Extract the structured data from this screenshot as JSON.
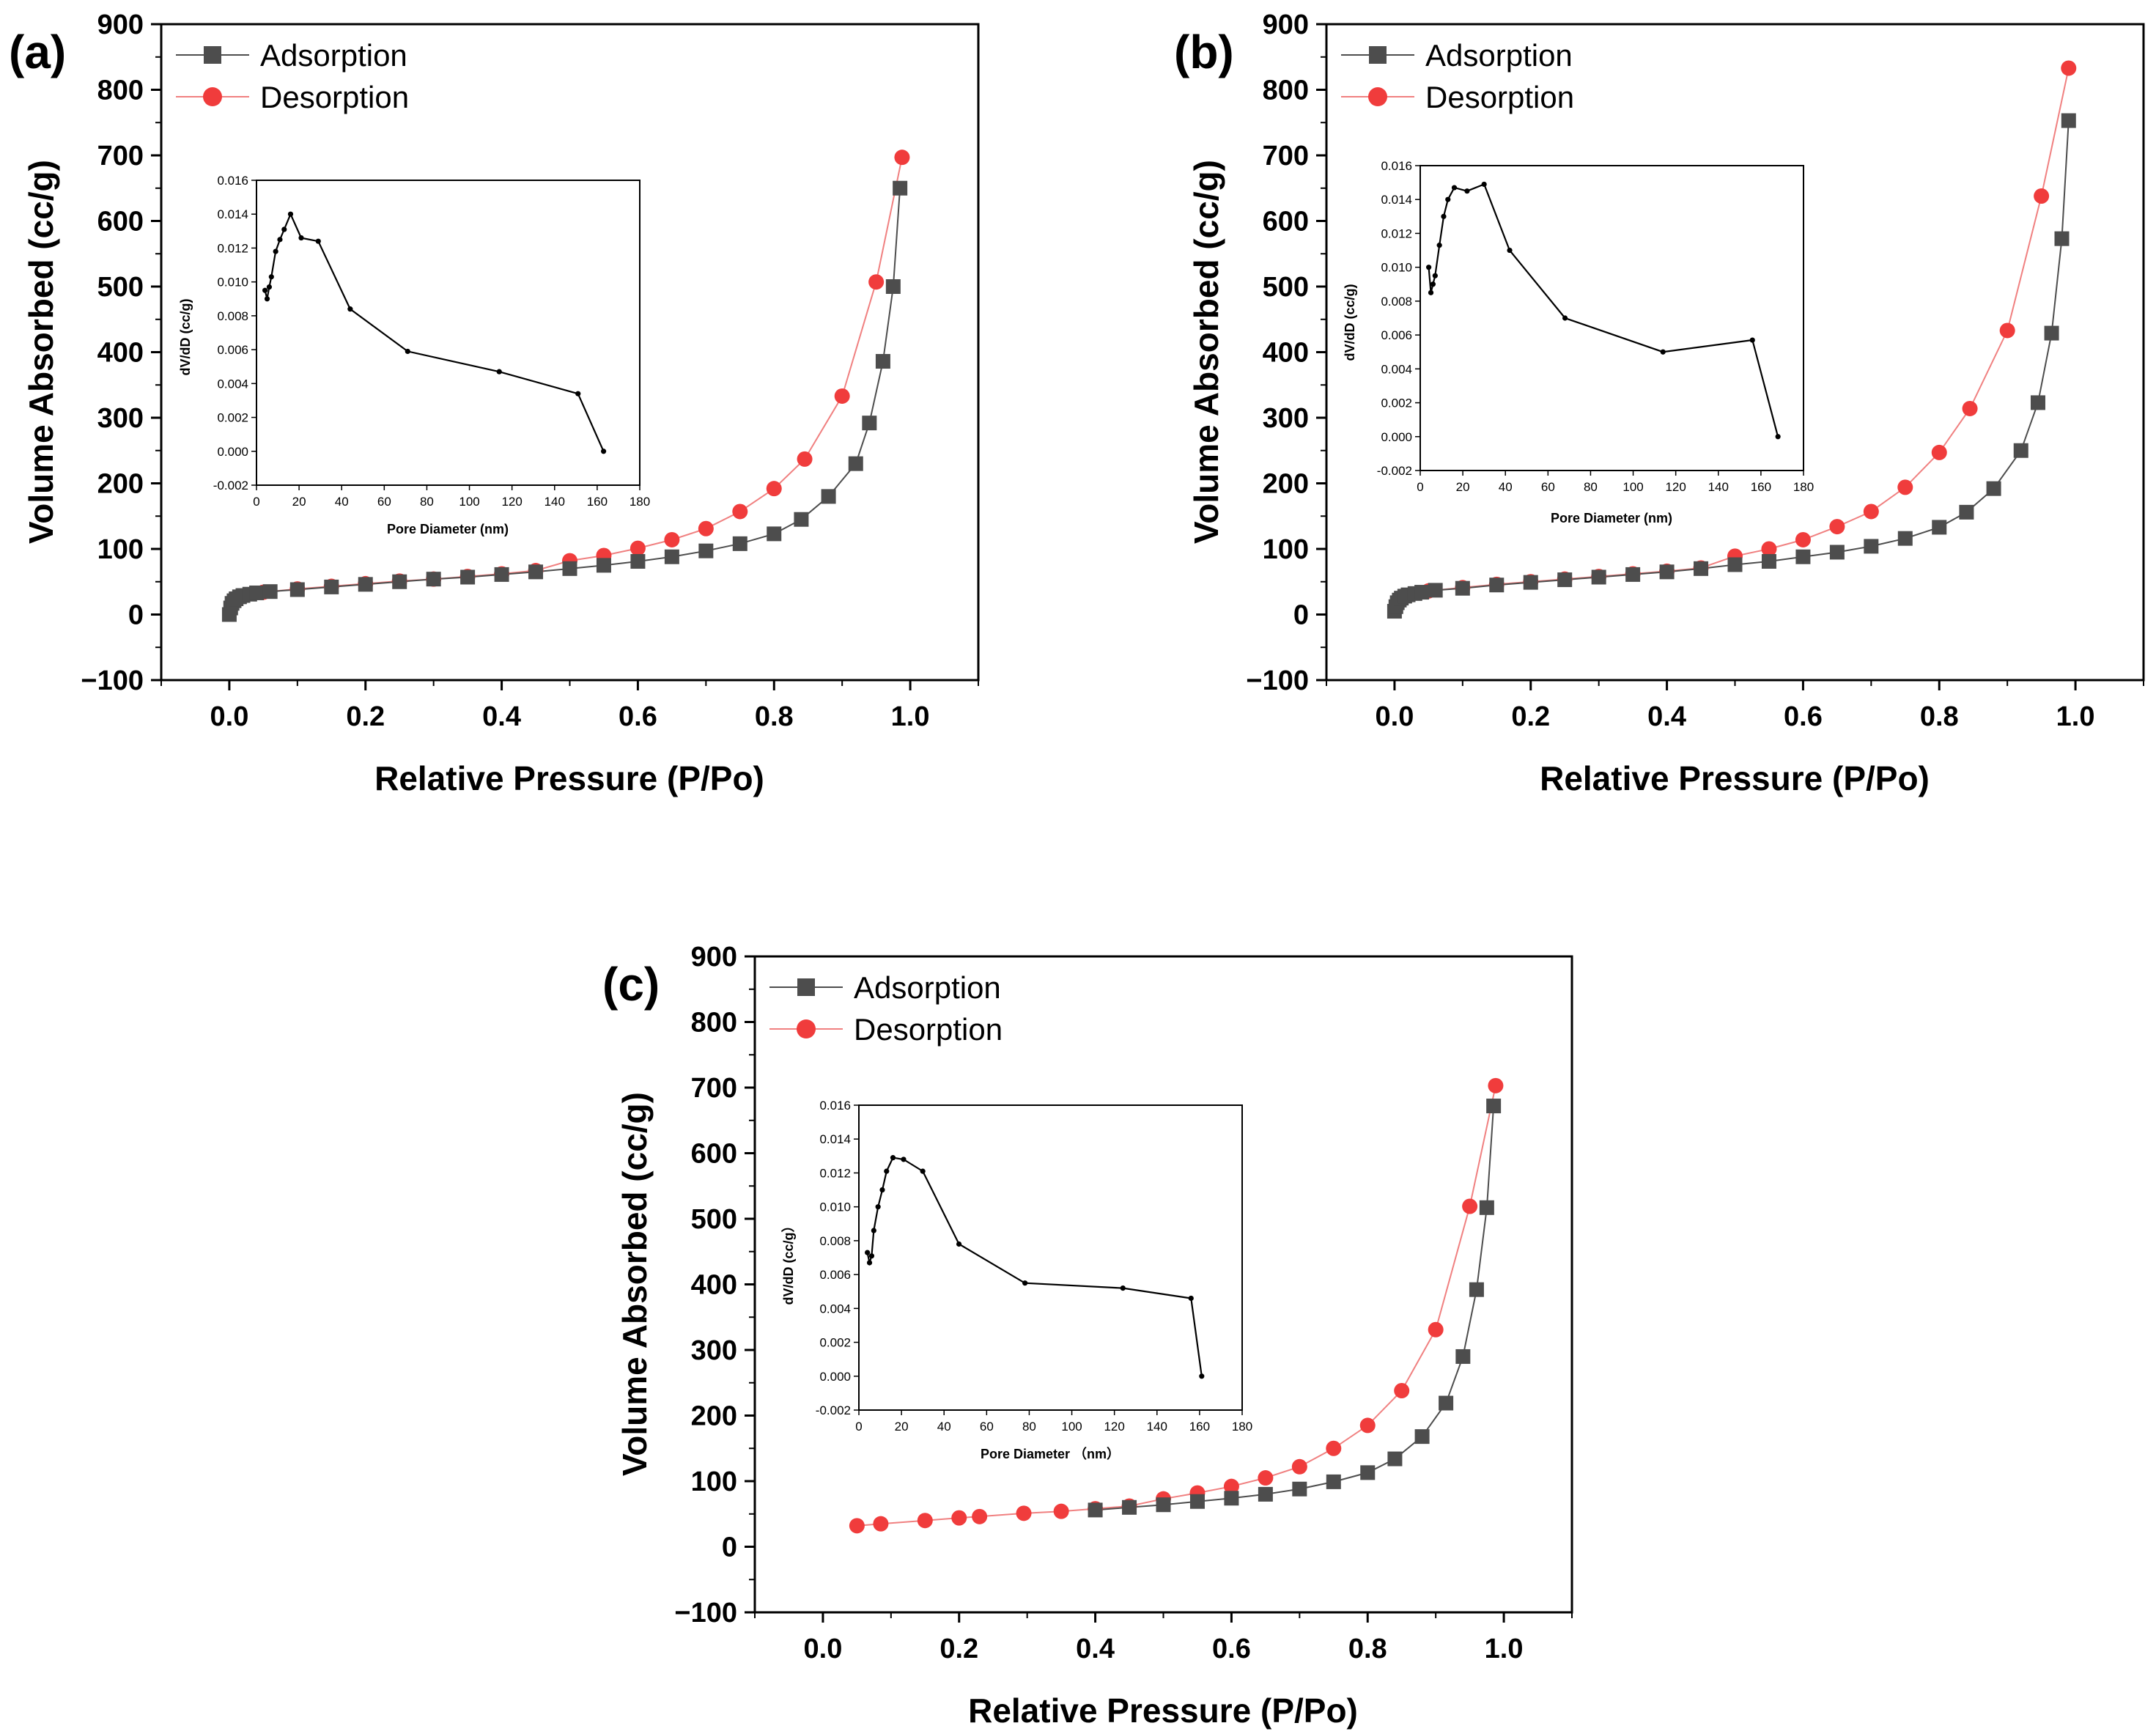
{
  "figure": {
    "colors": {
      "adsorption": "#4d4d4d",
      "desorption": "#f03c3c",
      "desorption_line": "#f08080",
      "inset_line": "#000000"
    },
    "icons": {
      "adsorption_marker": "square-marker-icon",
      "desorption_marker": "circle-marker-icon"
    }
  },
  "chart_data": [
    {
      "panel": "(a)",
      "type": "line",
      "xlabel": "Relative Pressure (P/Po)",
      "ylabel": "Volume Absorbed (cc/g)",
      "xlim": [
        -0.1,
        1.1
      ],
      "ylim": [
        -100,
        900
      ],
      "xticks": [
        "0.0",
        "0.2",
        "0.4",
        "0.6",
        "0.8",
        "1.0"
      ],
      "yticks": [
        "−100",
        "0",
        "100",
        "200",
        "300",
        "400",
        "500",
        "600",
        "700",
        "800",
        "900"
      ],
      "legend": [
        "Adsorption",
        "Desorption"
      ],
      "legend_position": "top-left",
      "series": [
        {
          "name": "Adsorption",
          "marker": "square",
          "x": [
            0.0,
            0.002,
            0.004,
            0.007,
            0.01,
            0.015,
            0.02,
            0.03,
            0.04,
            0.06,
            0.1,
            0.15,
            0.2,
            0.25,
            0.3,
            0.35,
            0.4,
            0.45,
            0.5,
            0.55,
            0.6,
            0.65,
            0.7,
            0.75,
            0.8,
            0.84,
            0.88,
            0.92,
            0.94,
            0.96,
            0.975,
            0.985
          ],
          "y": [
            0,
            10,
            17,
            21,
            24,
            27,
            29,
            31,
            33,
            35,
            38,
            42,
            46,
            50,
            54,
            57,
            61,
            65,
            70,
            75,
            81,
            88,
            97,
            108,
            123,
            145,
            180,
            230,
            292,
            386,
            500,
            650
          ]
        },
        {
          "name": "Desorption",
          "marker": "circle",
          "x": [
            0.05,
            0.1,
            0.15,
            0.2,
            0.25,
            0.3,
            0.35,
            0.4,
            0.45,
            0.5,
            0.55,
            0.6,
            0.65,
            0.7,
            0.75,
            0.8,
            0.845,
            0.9,
            0.95,
            0.988
          ],
          "y": [
            34,
            39,
            43,
            47,
            51,
            54,
            58,
            62,
            67,
            82,
            90,
            101,
            114,
            131,
            157,
            192,
            237,
            333,
            507,
            697
          ]
        }
      ],
      "inset": {
        "type": "line",
        "xlabel": "Pore Diameter (nm)",
        "ylabel": "dV/dD (cc/g)",
        "xlim": [
          0,
          180
        ],
        "ylim": [
          -0.002,
          0.016
        ],
        "xticks": [
          "0",
          "20",
          "40",
          "60",
          "80",
          "100",
          "120",
          "140",
          "160",
          "180"
        ],
        "yticks": [
          "-0.002",
          "0.000",
          "0.002",
          "0.004",
          "0.006",
          "0.008",
          "0.010",
          "0.012",
          "0.014",
          "0.016"
        ],
        "x": [
          4,
          5,
          6,
          7,
          9,
          11,
          13,
          16,
          21,
          29,
          44,
          71,
          114,
          151,
          163
        ],
        "y": [
          0.0095,
          0.009,
          0.0097,
          0.0103,
          0.0118,
          0.0125,
          0.0131,
          0.014,
          0.0126,
          0.0124,
          0.0084,
          0.0059,
          0.0047,
          0.0034,
          0.0
        ]
      }
    },
    {
      "panel": "(b)",
      "type": "line",
      "xlabel": "Relative Pressure (P/Po)",
      "ylabel": "Volume Absorbed (cc/g)",
      "xlim": [
        -0.1,
        1.1
      ],
      "ylim": [
        -100,
        900
      ],
      "xticks": [
        "0.0",
        "0.2",
        "0.4",
        "0.6",
        "0.8",
        "1.0"
      ],
      "yticks": [
        "−100",
        "0",
        "100",
        "200",
        "300",
        "400",
        "500",
        "600",
        "700",
        "800",
        "900"
      ],
      "legend": [
        "Adsorption",
        "Desorption"
      ],
      "legend_position": "top-left",
      "series": [
        {
          "name": "Adsorption",
          "marker": "square",
          "x": [
            0.0,
            0.002,
            0.004,
            0.007,
            0.01,
            0.015,
            0.02,
            0.03,
            0.04,
            0.06,
            0.1,
            0.15,
            0.2,
            0.25,
            0.3,
            0.35,
            0.4,
            0.45,
            0.5,
            0.55,
            0.6,
            0.65,
            0.7,
            0.75,
            0.8,
            0.84,
            0.88,
            0.92,
            0.945,
            0.965,
            0.98,
            0.99
          ],
          "y": [
            5,
            12,
            18,
            22,
            25,
            28,
            30,
            32,
            34,
            37,
            40,
            45,
            49,
            53,
            57,
            61,
            65,
            70,
            76,
            81,
            88,
            95,
            104,
            116,
            133,
            156,
            192,
            250,
            323,
            429,
            573,
            753
          ]
        },
        {
          "name": "Desorption",
          "marker": "circle",
          "x": [
            0.05,
            0.1,
            0.15,
            0.2,
            0.25,
            0.3,
            0.35,
            0.4,
            0.45,
            0.5,
            0.55,
            0.6,
            0.65,
            0.7,
            0.75,
            0.8,
            0.845,
            0.9,
            0.95,
            0.99
          ],
          "y": [
            36,
            41,
            46,
            50,
            54,
            58,
            62,
            66,
            71,
            89,
            100,
            114,
            134,
            157,
            194,
            247,
            314,
            433,
            638,
            833
          ]
        }
      ],
      "inset": {
        "type": "line",
        "xlabel": "Pore Diameter (nm)",
        "ylabel": "dV/dD (cc/g)",
        "xlim": [
          0,
          180
        ],
        "ylim": [
          -0.002,
          0.016
        ],
        "xticks": [
          "0",
          "20",
          "40",
          "60",
          "80",
          "100",
          "120",
          "140",
          "160",
          "180"
        ],
        "yticks": [
          "-0.002",
          "0.000",
          "0.002",
          "0.004",
          "0.006",
          "0.008",
          "0.010",
          "0.012",
          "0.014",
          "0.016"
        ],
        "x": [
          4,
          5,
          6,
          7,
          9,
          11,
          13,
          16,
          22,
          30,
          42,
          68,
          114,
          156,
          168
        ],
        "y": [
          0.01,
          0.0085,
          0.009,
          0.0095,
          0.0113,
          0.013,
          0.014,
          0.0147,
          0.0145,
          0.0149,
          0.011,
          0.007,
          0.005,
          0.0057,
          0.0
        ]
      }
    },
    {
      "panel": "(c)",
      "type": "line",
      "xlabel": "Relative Pressure (P/Po)",
      "ylabel": "Volume Absorbed (cc/g)",
      "xlim": [
        -0.1,
        1.1
      ],
      "ylim": [
        -100,
        900
      ],
      "xticks": [
        "0.0",
        "0.2",
        "0.4",
        "0.6",
        "0.8",
        "1.0"
      ],
      "yticks": [
        "−100",
        "0",
        "100",
        "200",
        "300",
        "400",
        "500",
        "600",
        "700",
        "800",
        "900"
      ],
      "legend": [
        "Adsorption",
        "Desorption"
      ],
      "legend_position": "top-left",
      "series": [
        {
          "name": "Adsorption",
          "marker": "square",
          "x": [
            0.4,
            0.45,
            0.5,
            0.55,
            0.6,
            0.65,
            0.7,
            0.75,
            0.8,
            0.84,
            0.88,
            0.915,
            0.94,
            0.96,
            0.975,
            0.985
          ],
          "y": [
            56,
            60,
            64,
            69,
            74,
            80,
            88,
            99,
            113,
            134,
            168,
            219,
            290,
            392,
            517,
            672
          ]
        },
        {
          "name": "Desorption",
          "marker": "circle",
          "x": [
            0.05,
            0.085,
            0.15,
            0.2,
            0.23,
            0.295,
            0.35,
            0.4,
            0.45,
            0.5,
            0.55,
            0.6,
            0.65,
            0.7,
            0.75,
            0.8,
            0.85,
            0.9,
            0.95,
            0.988
          ],
          "y": [
            32,
            35,
            40,
            44,
            46,
            51,
            54,
            58,
            62,
            73,
            82,
            92,
            105,
            122,
            150,
            185,
            238,
            331,
            519,
            703
          ]
        }
      ],
      "inset": {
        "type": "line",
        "xlabel": "Pore Diameter （nm）",
        "ylabel": "dV/dD (cc/g）",
        "xlim": [
          0,
          180
        ],
        "ylim": [
          -0.002,
          0.016
        ],
        "xticks": [
          "0",
          "20",
          "40",
          "60",
          "80",
          "100",
          "120",
          "140",
          "160",
          "180"
        ],
        "yticks": [
          "-0.002",
          "0.000",
          "0.002",
          "0.004",
          "0.006",
          "0.008",
          "0.010",
          "0.012",
          "0.014",
          "0.016"
        ],
        "x": [
          4,
          5,
          6,
          7,
          9,
          11,
          13,
          16,
          21,
          30,
          47,
          78,
          124,
          156,
          161
        ],
        "y": [
          0.0073,
          0.0067,
          0.0071,
          0.0086,
          0.01,
          0.011,
          0.0121,
          0.0129,
          0.0128,
          0.0121,
          0.0078,
          0.0055,
          0.0052,
          0.0046,
          0.0
        ]
      }
    }
  ]
}
